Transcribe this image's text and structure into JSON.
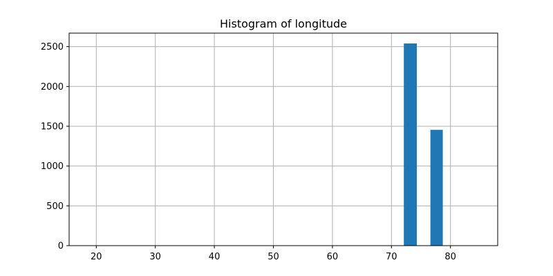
{
  "chart_data": {
    "type": "bar",
    "title": "Histogram of longitude",
    "xlabel": "",
    "ylabel": "",
    "xlim": [
      15.4,
      88.0
    ],
    "ylim": [
      0,
      2670
    ],
    "x_ticks": [
      20,
      30,
      40,
      50,
      60,
      70,
      80
    ],
    "y_ticks": [
      0,
      500,
      1000,
      1500,
      2000,
      2500
    ],
    "grid": true,
    "color": "#1f77b4",
    "bins": [
      {
        "x0": 72.1,
        "x1": 74.3,
        "value": 2540
      },
      {
        "x0": 76.6,
        "x1": 78.7,
        "value": 1455
      }
    ]
  }
}
